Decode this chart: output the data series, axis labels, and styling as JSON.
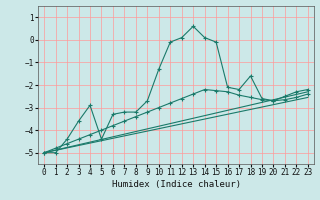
{
  "title": "",
  "xlabel": "Humidex (Indice chaleur)",
  "background_color": "#cce8e8",
  "grid_color": "#ff9999",
  "line_color": "#1a7a6a",
  "xlim": [
    -0.5,
    23.5
  ],
  "ylim": [
    -5.5,
    1.5
  ],
  "yticks": [
    -5,
    -4,
    -3,
    -2,
    -1,
    0,
    1
  ],
  "xticks": [
    0,
    1,
    2,
    3,
    4,
    5,
    6,
    7,
    8,
    9,
    10,
    11,
    12,
    13,
    14,
    15,
    16,
    17,
    18,
    19,
    20,
    21,
    22,
    23
  ],
  "line1_x": [
    0,
    1,
    2,
    3,
    4,
    5,
    6,
    7,
    8,
    9,
    10,
    11,
    12,
    13,
    14,
    15,
    16,
    17,
    18,
    19,
    20,
    21,
    22,
    23
  ],
  "line1_y": [
    -5.0,
    -5.0,
    -4.4,
    -3.6,
    -2.9,
    -4.4,
    -3.3,
    -3.2,
    -3.2,
    -2.7,
    -1.3,
    -0.1,
    0.1,
    0.6,
    0.1,
    -0.1,
    -2.1,
    -2.2,
    -1.6,
    -2.6,
    -2.7,
    -2.5,
    -2.3,
    -2.2
  ],
  "line2_x": [
    0,
    1,
    2,
    3,
    4,
    5,
    6,
    7,
    8,
    9,
    10,
    11,
    12,
    13,
    14,
    15,
    16,
    17,
    18,
    19,
    20,
    21,
    22,
    23
  ],
  "line2_y": [
    -5.0,
    -4.8,
    -4.6,
    -4.4,
    -4.2,
    -4.0,
    -3.8,
    -3.6,
    -3.4,
    -3.2,
    -3.0,
    -2.8,
    -2.6,
    -2.4,
    -2.2,
    -2.25,
    -2.3,
    -2.45,
    -2.55,
    -2.65,
    -2.7,
    -2.65,
    -2.55,
    -2.4
  ],
  "line3_x": [
    0,
    23
  ],
  "line3_y": [
    -5.0,
    -2.3
  ],
  "line4_x": [
    0,
    23
  ],
  "line4_y": [
    -5.0,
    -2.55
  ]
}
